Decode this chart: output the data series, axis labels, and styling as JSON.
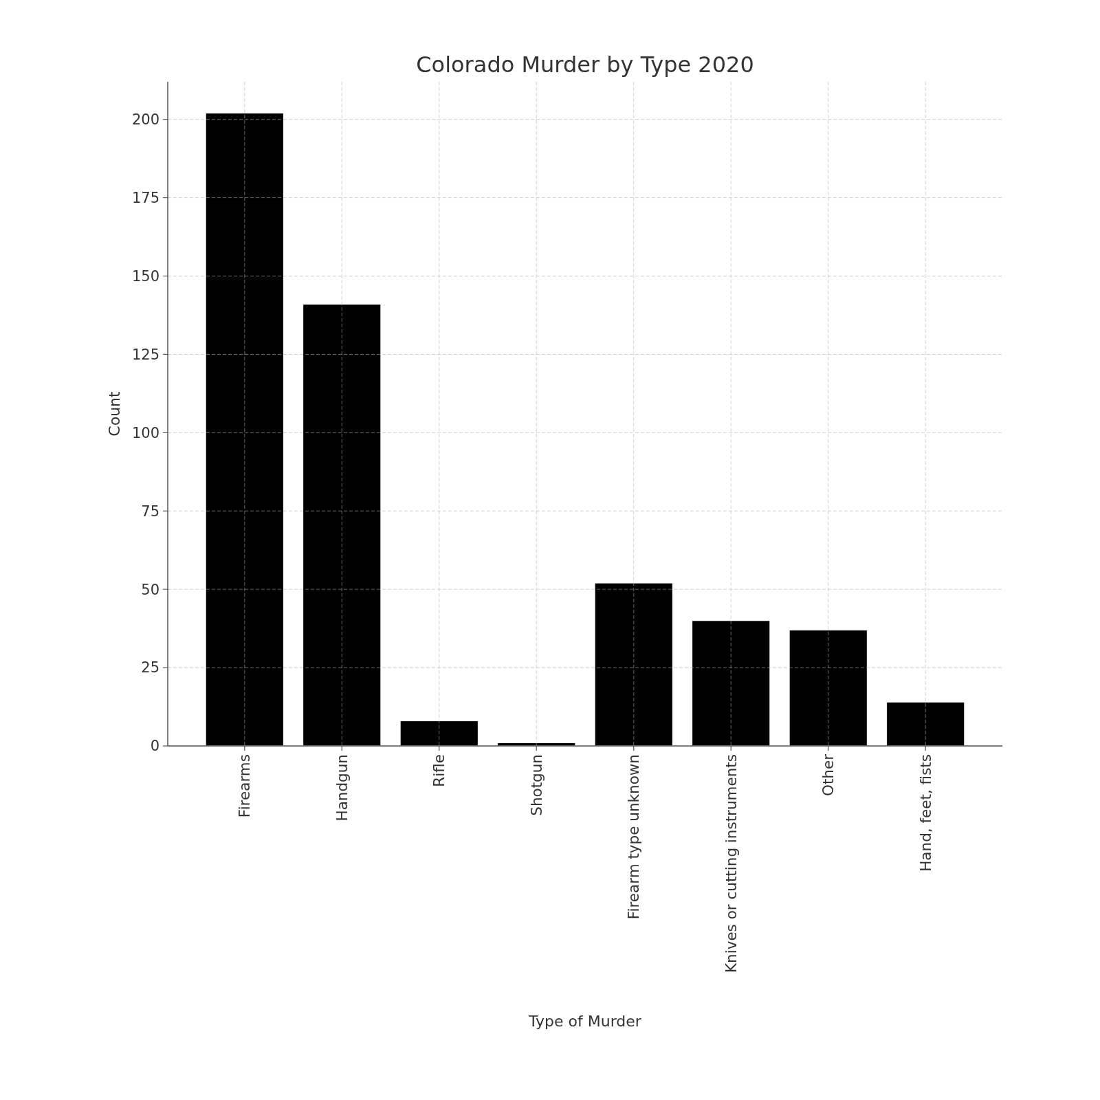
{
  "chart_data": {
    "type": "bar",
    "title": "Colorado Murder by Type 2020",
    "xlabel": "Type of Murder",
    "ylabel": "Count",
    "categories": [
      "Firearms",
      "Handgun",
      "Rifle",
      "Shotgun",
      "Firearm type unknown",
      "Knives or cutting instruments",
      "Other",
      "Hand, feet, fists"
    ],
    "values": [
      202,
      141,
      8,
      1,
      52,
      40,
      37,
      14
    ],
    "color": "#000000",
    "ylim": [
      0,
      212
    ],
    "yticks": [
      0,
      25,
      50,
      75,
      100,
      125,
      150,
      175,
      200
    ],
    "grid": true
  }
}
